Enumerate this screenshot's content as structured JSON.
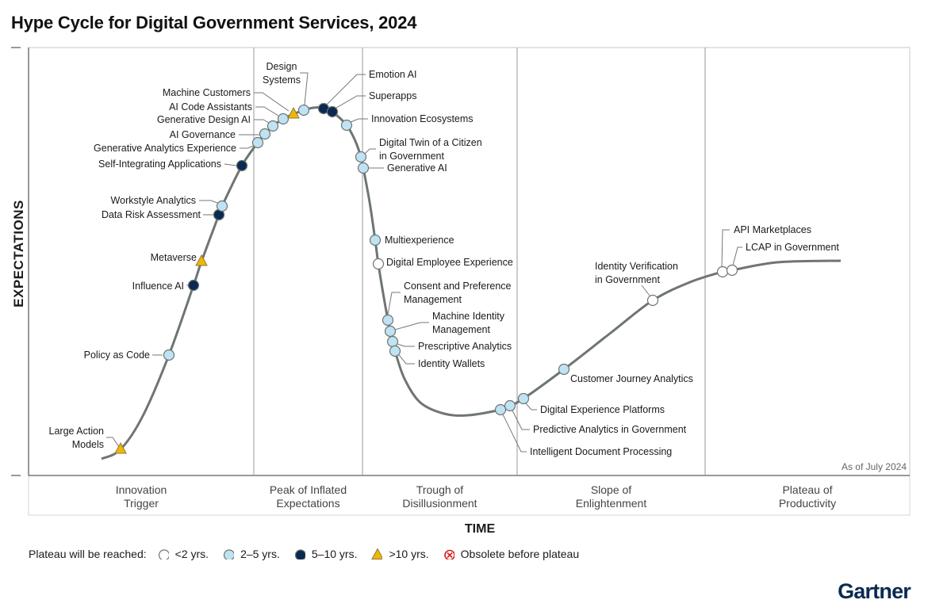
{
  "title": "Hype Cycle for Digital Government Services, 2024",
  "y_axis_label": "EXPECTATIONS",
  "x_axis_label": "TIME",
  "as_of": "As of July 2024",
  "brand": "Gartner",
  "phases": [
    [
      "Innovation",
      "Trigger"
    ],
    [
      "Peak of Inflated",
      "Expectations"
    ],
    [
      "Trough of",
      "Disillusionment"
    ],
    [
      "Slope of",
      "Enlightenment"
    ],
    [
      "Plateau of",
      "Productivity"
    ]
  ],
  "legend": {
    "title": "Plateau will be reached:",
    "items": [
      {
        "key": "lt2",
        "label": "<2 yrs.",
        "shape": "circle",
        "color": "#ffffff"
      },
      {
        "key": "2to5",
        "label": "2–5 yrs.",
        "shape": "circle",
        "color": "#bfe3f2"
      },
      {
        "key": "5to10",
        "label": "5–10 yrs.",
        "shape": "circle",
        "color": "#0b2a52"
      },
      {
        "key": "gt10",
        "label": ">10 yrs.",
        "shape": "triangle",
        "color": "#f2b705"
      },
      {
        "key": "obsolete",
        "label": "Obsolete before plateau",
        "shape": "x-circle",
        "color": "#d0231c"
      }
    ]
  },
  "curve_color": "#6e7573",
  "technologies": [
    {
      "label": [
        "Large Action",
        "Models"
      ],
      "plateau": "gt10"
    },
    {
      "label": [
        "Policy as Code"
      ],
      "plateau": "2to5"
    },
    {
      "label": [
        "Influence AI"
      ],
      "plateau": "5to10"
    },
    {
      "label": [
        "Metaverse"
      ],
      "plateau": "gt10"
    },
    {
      "label": [
        "Data Risk Assessment"
      ],
      "plateau": "5to10"
    },
    {
      "label": [
        "Workstyle Analytics"
      ],
      "plateau": "2to5"
    },
    {
      "label": [
        "Self-Integrating Applications"
      ],
      "plateau": "5to10"
    },
    {
      "label": [
        "Generative Analytics Experience"
      ],
      "plateau": "2to5"
    },
    {
      "label": [
        "AI Governance"
      ],
      "plateau": "2to5"
    },
    {
      "label": [
        "Generative Design AI"
      ],
      "plateau": "2to5"
    },
    {
      "label": [
        "AI Code Assistants"
      ],
      "plateau": "2to5"
    },
    {
      "label": [
        "Machine Customers"
      ],
      "plateau": "gt10"
    },
    {
      "label": [
        "Design",
        "Systems"
      ],
      "plateau": "2to5"
    },
    {
      "label": [
        "Emotion AI"
      ],
      "plateau": "5to10"
    },
    {
      "label": [
        "Superapps"
      ],
      "plateau": "5to10"
    },
    {
      "label": [
        "Innovation Ecosystems"
      ],
      "plateau": "2to5"
    },
    {
      "label": [
        "Digital Twin of a Citizen",
        "in Government"
      ],
      "plateau": "2to5"
    },
    {
      "label": [
        "Generative AI"
      ],
      "plateau": "2to5"
    },
    {
      "label": [
        "Multiexperience"
      ],
      "plateau": "2to5"
    },
    {
      "label": [
        "Digital Employee Experience"
      ],
      "plateau": "lt2"
    },
    {
      "label": [
        "Consent and Preference",
        "Management"
      ],
      "plateau": "2to5"
    },
    {
      "label": [
        "Machine Identity",
        "Management"
      ],
      "plateau": "2to5"
    },
    {
      "label": [
        "Prescriptive Analytics"
      ],
      "plateau": "2to5"
    },
    {
      "label": [
        "Identity Wallets"
      ],
      "plateau": "2to5"
    },
    {
      "label": [
        "Intelligent Document Processing"
      ],
      "plateau": "2to5"
    },
    {
      "label": [
        "Predictive Analytics in Government"
      ],
      "plateau": "2to5"
    },
    {
      "label": [
        "Digital Experience Platforms"
      ],
      "plateau": "2to5"
    },
    {
      "label": [
        "Customer Journey Analytics"
      ],
      "plateau": "2to5"
    },
    {
      "label": [
        "Identity Verification",
        "in Government"
      ],
      "plateau": "lt2"
    },
    {
      "label": [
        "API Marketplaces"
      ],
      "plateau": "lt2"
    },
    {
      "label": [
        "LCAP in Government"
      ],
      "plateau": "lt2"
    }
  ]
}
